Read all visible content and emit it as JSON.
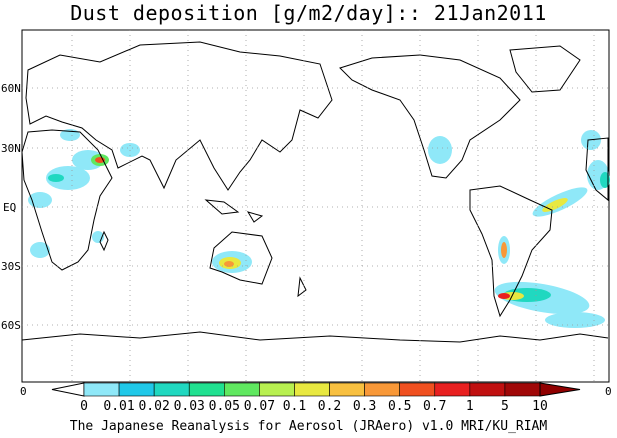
{
  "title": "Dust deposition [g/m2/day]:: 21Jan2011",
  "footer": "The Japanese Reanalysis for Aerosol (JRAero) v1.0 MRI/KU_RIAM",
  "map": {
    "lat_labels": [
      "60N",
      "30N",
      "EQ",
      "30S",
      "60S"
    ],
    "corner_left": "0",
    "corner_right": "0"
  },
  "colorbar": {
    "labels": [
      "0",
      "0.01",
      "0.02",
      "0.03",
      "0.05",
      "0.07",
      "0.1",
      "0.2",
      "0.3",
      "0.5",
      "0.7",
      "1",
      "5",
      "10"
    ],
    "colors": [
      "#ffffff",
      "#8fe8f8",
      "#20c8e8",
      "#20d8c0",
      "#20e090",
      "#60e860",
      "#b8f050",
      "#e8e840",
      "#f8c040",
      "#f89838",
      "#f05020",
      "#e82020",
      "#c01010",
      "#a00808",
      "#900000"
    ]
  }
}
